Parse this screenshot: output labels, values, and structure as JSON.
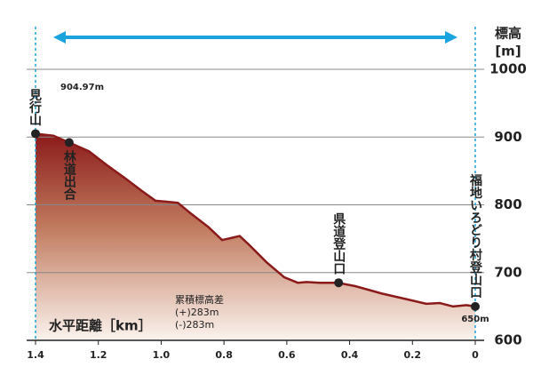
{
  "chart_data": {
    "type": "area",
    "y_label_lines": [
      "標高",
      "[m]"
    ],
    "x_label": "水平距離［km］",
    "x": [
      1.4,
      1.343,
      1.293,
      1.23,
      1.174,
      1.117,
      1.06,
      1.018,
      0.99,
      0.947,
      0.905,
      0.849,
      0.806,
      0.778,
      0.75,
      0.72,
      0.664,
      0.608,
      0.565,
      0.537,
      0.495,
      0.438,
      0.382,
      0.297,
      0.212,
      0.156,
      0.113,
      0.071,
      0.028,
      0
    ],
    "series": [
      {
        "color": "#8b1a1a",
        "values": [
          904.97,
          902,
          892,
          879,
          859,
          840,
          820,
          806,
          805,
          803,
          787,
          767,
          748,
          751,
          754,
          741,
          715,
          693,
          685,
          686,
          685,
          685,
          680,
          669,
          660,
          654,
          655,
          650,
          652,
          650
        ]
      }
    ],
    "markers": {
      "names": [
        "見行山",
        "林道出合",
        "県道登山口",
        "福地いろどり村登山口"
      ],
      "x": [
        1.4,
        1.293,
        0.435,
        0
      ],
      "y": [
        904.97,
        892,
        685,
        650
      ],
      "value_labels": [
        "904.97m",
        null,
        null,
        "650m"
      ]
    },
    "annotation": [
      "累積標高差",
      "(+)283m",
      "(-)283m"
    ],
    "xlim": [
      1.4,
      0
    ],
    "xticks": [
      1.4,
      1.2,
      {
        "value": 1,
        "label": "1.0"
      },
      0.8,
      0.6,
      0.4,
      0.2,
      0
    ],
    "ylim": [
      600,
      1000
    ],
    "yticks": [
      600,
      700,
      800,
      900,
      1000
    ],
    "grid": true
  }
}
